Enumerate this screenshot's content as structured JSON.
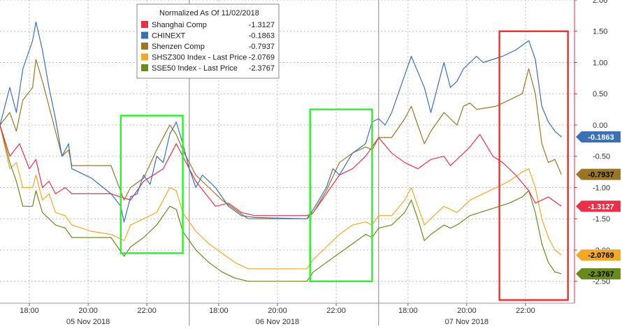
{
  "chart_data": {
    "type": "line",
    "legend": {
      "title": "Normalized As Of 11/02/2018",
      "placement": "top-center"
    },
    "y_axis": {
      "side": "right",
      "ylim": [
        -2.85,
        2.0
      ],
      "ticks": [
        2.0,
        1.5,
        1.0,
        0.5,
        0.0,
        -0.5,
        -1.0,
        -1.5,
        -2.0,
        -2.5
      ],
      "tick_labels": [
        "2.00",
        "1.50",
        "1.00",
        "0.50",
        "0.00",
        "-0.50",
        "-1.00",
        "-1.50",
        "-2.00",
        "-2.50"
      ]
    },
    "x_axis": {
      "tick_labels": [
        "18:00",
        "20:00",
        "22:00",
        "18:00",
        "20:00",
        "22:00",
        "18:00",
        "20:00",
        "22:00"
      ],
      "date_labels": [
        "05 Nov 2018",
        "06 Nov 2018",
        "07 Nov 2018"
      ]
    },
    "grid": true,
    "series": [
      {
        "name": "Shanghai Comp",
        "last": "-1.3127",
        "badge": "-1.3127",
        "color": "#e8304a",
        "values": [
          [
            0,
            0
          ],
          [
            1.5,
            -0.5
          ],
          [
            3,
            -0.3
          ],
          [
            4.5,
            -0.7
          ],
          [
            5.5,
            -0.55
          ],
          [
            6.5,
            -1.0
          ],
          [
            7.5,
            -0.9
          ],
          [
            8.5,
            -1.1
          ],
          [
            10,
            -1.0
          ],
          [
            11,
            -1.1
          ],
          [
            17,
            -1.1
          ],
          [
            20,
            -1.2
          ],
          [
            22,
            -0.9
          ],
          [
            25,
            -0.7
          ],
          [
            27,
            -0.3
          ],
          [
            28.5,
            -0.6
          ],
          [
            30,
            -0.9
          ],
          [
            31.5,
            -1.1
          ],
          [
            33,
            -1.3
          ],
          [
            35,
            -1.25
          ],
          [
            37,
            -1.4
          ],
          [
            39,
            -1.45
          ],
          [
            47,
            -1.45
          ],
          [
            48,
            -1.4
          ],
          [
            50,
            -1.1
          ],
          [
            52,
            -0.8
          ],
          [
            54,
            -0.7
          ],
          [
            56,
            -0.5
          ],
          [
            58,
            -0.2
          ],
          [
            60,
            -0.45
          ],
          [
            62,
            -0.6
          ],
          [
            64,
            -0.7
          ],
          [
            66,
            -0.55
          ],
          [
            68,
            -0.5
          ],
          [
            69,
            -0.65
          ],
          [
            70,
            -0.55
          ],
          [
            72,
            -0.35
          ],
          [
            73.5,
            -0.15
          ],
          [
            75.5,
            -0.5
          ],
          [
            77,
            -0.6
          ],
          [
            79,
            -0.8
          ],
          [
            81,
            -1.05
          ],
          [
            82,
            -1.25
          ],
          [
            84,
            -1.15
          ],
          [
            86,
            -1.3
          ]
        ]
      },
      {
        "name": "CHINEXT",
        "last": "-0.1863",
        "badge": "-0.1863",
        "color": "#3c6fb4",
        "values": [
          [
            0,
            0
          ],
          [
            1.5,
            0.6
          ],
          [
            2.5,
            0.2
          ],
          [
            3.5,
            0.9
          ],
          [
            5,
            1.35
          ],
          [
            5.5,
            1.65
          ],
          [
            6.5,
            1.2
          ],
          [
            7.5,
            0.6
          ],
          [
            8.5,
            0.1
          ],
          [
            9.5,
            -0.5
          ],
          [
            10.5,
            -0.3
          ],
          [
            11,
            -0.7
          ],
          [
            14,
            -0.85
          ],
          [
            17,
            -1.1
          ],
          [
            18.5,
            -1.3
          ],
          [
            19,
            -1.55
          ],
          [
            20,
            -1.15
          ],
          [
            21,
            -1.1
          ],
          [
            22,
            -0.8
          ],
          [
            23,
            -0.95
          ],
          [
            24,
            -0.5
          ],
          [
            25,
            -0.6
          ],
          [
            26,
            -0.15
          ],
          [
            27,
            0.05
          ],
          [
            28,
            -0.3
          ],
          [
            29,
            -0.7
          ],
          [
            30,
            -1.0
          ],
          [
            31,
            -0.8
          ],
          [
            33,
            -1.0
          ],
          [
            35,
            -1.3
          ],
          [
            37,
            -1.45
          ],
          [
            39,
            -1.48
          ],
          [
            47,
            -1.5
          ],
          [
            48,
            -1.35
          ],
          [
            50,
            -1.0
          ],
          [
            51,
            -0.7
          ],
          [
            52,
            -0.8
          ],
          [
            54,
            -0.45
          ],
          [
            56,
            -0.3
          ],
          [
            57,
            0.05
          ],
          [
            58,
            0.1
          ],
          [
            59,
            0.0
          ],
          [
            60,
            0.2
          ],
          [
            61,
            0.5
          ],
          [
            62,
            0.8
          ],
          [
            63,
            1.1
          ],
          [
            65,
            0.6
          ],
          [
            66,
            0.2
          ],
          [
            67,
            0.6
          ],
          [
            68,
            1.0
          ],
          [
            69,
            0.6
          ],
          [
            70,
            0.7
          ],
          [
            71,
            0.9
          ],
          [
            72,
            1.0
          ],
          [
            73,
            1.1
          ],
          [
            74,
            1.0
          ],
          [
            77,
            1.1
          ],
          [
            79,
            1.2
          ],
          [
            81,
            1.35
          ],
          [
            82,
            1.05
          ],
          [
            83,
            0.3
          ],
          [
            84,
            0.05
          ],
          [
            85,
            -0.1
          ],
          [
            86,
            -0.19
          ]
        ]
      },
      {
        "name": "Shenzen Comp",
        "last": "-0.7937",
        "badge": "-0.7937",
        "color": "#9a7526",
        "values": [
          [
            0,
            0
          ],
          [
            1.5,
            0.2
          ],
          [
            2.5,
            -0.1
          ],
          [
            3.5,
            0.4
          ],
          [
            5,
            0.6
          ],
          [
            5.5,
            1.05
          ],
          [
            6.5,
            0.7
          ],
          [
            7.5,
            0.3
          ],
          [
            8.5,
            -0.1
          ],
          [
            9.5,
            -0.5
          ],
          [
            10.5,
            -0.4
          ],
          [
            11,
            -0.65
          ],
          [
            17,
            -0.65
          ],
          [
            19,
            -1.2
          ],
          [
            20,
            -1.0
          ],
          [
            22,
            -0.85
          ],
          [
            24,
            -0.4
          ],
          [
            26,
            0.0
          ],
          [
            27,
            -0.15
          ],
          [
            28,
            -0.4
          ],
          [
            30,
            -0.8
          ],
          [
            32,
            -1.0
          ],
          [
            34,
            -1.2
          ],
          [
            36,
            -1.35
          ],
          [
            38,
            -1.5
          ],
          [
            47,
            -1.5
          ],
          [
            48,
            -1.4
          ],
          [
            50,
            -1.05
          ],
          [
            52,
            -0.6
          ],
          [
            54,
            -0.45
          ],
          [
            56,
            -0.35
          ],
          [
            57,
            -0.4
          ],
          [
            58,
            -0.2
          ],
          [
            60,
            -0.2
          ],
          [
            62,
            0.1
          ],
          [
            63,
            0.3
          ],
          [
            64,
            0.0
          ],
          [
            65,
            -0.3
          ],
          [
            66,
            -0.1
          ],
          [
            68,
            0.2
          ],
          [
            69,
            0.1
          ],
          [
            70,
            0.0
          ],
          [
            71,
            0.3
          ],
          [
            72,
            0.35
          ],
          [
            73,
            0.25
          ],
          [
            76,
            0.3
          ],
          [
            78,
            0.4
          ],
          [
            80,
            0.5
          ],
          [
            81,
            0.9
          ],
          [
            82,
            0.5
          ],
          [
            83,
            -0.3
          ],
          [
            84,
            -0.6
          ],
          [
            85,
            -0.55
          ],
          [
            86,
            -0.79
          ]
        ]
      },
      {
        "name": "SHSZ300 Index - Last Price",
        "last": "-2.0769",
        "badge": "-2.0769",
        "color": "#f3a829",
        "values": [
          [
            0,
            0
          ],
          [
            1.5,
            -0.7
          ],
          [
            2.5,
            -0.6
          ],
          [
            3.5,
            -1.0
          ],
          [
            5,
            -1.0
          ],
          [
            5.5,
            -0.8
          ],
          [
            6.5,
            -1.2
          ],
          [
            7.5,
            -1.1
          ],
          [
            8.5,
            -1.4
          ],
          [
            10,
            -1.45
          ],
          [
            11,
            -1.6
          ],
          [
            14,
            -1.7
          ],
          [
            17,
            -1.75
          ],
          [
            19,
            -1.85
          ],
          [
            20,
            -1.6
          ],
          [
            22,
            -1.5
          ],
          [
            24,
            -1.4
          ],
          [
            26,
            -1.0
          ],
          [
            27,
            -1.05
          ],
          [
            28,
            -1.4
          ],
          [
            30,
            -1.7
          ],
          [
            32,
            -1.9
          ],
          [
            34,
            -2.05
          ],
          [
            36,
            -2.2
          ],
          [
            38,
            -2.3
          ],
          [
            47,
            -2.3
          ],
          [
            48,
            -2.15
          ],
          [
            50,
            -1.95
          ],
          [
            52,
            -1.75
          ],
          [
            54,
            -1.6
          ],
          [
            56,
            -1.55
          ],
          [
            57,
            -1.6
          ],
          [
            58,
            -1.45
          ],
          [
            60,
            -1.45
          ],
          [
            62,
            -1.2
          ],
          [
            63,
            -1.0
          ],
          [
            64,
            -1.3
          ],
          [
            65,
            -1.6
          ],
          [
            66,
            -1.5
          ],
          [
            68,
            -1.3
          ],
          [
            69,
            -1.35
          ],
          [
            70,
            -1.4
          ],
          [
            72,
            -1.2
          ],
          [
            75,
            -1.05
          ],
          [
            78,
            -0.9
          ],
          [
            80,
            -0.75
          ],
          [
            81,
            -0.7
          ],
          [
            82,
            -1.0
          ],
          [
            83,
            -1.5
          ],
          [
            84,
            -1.8
          ],
          [
            85,
            -2.0
          ],
          [
            86,
            -2.08
          ]
        ]
      },
      {
        "name": "SSE50 Index - Last Price",
        "last": "-2.3767",
        "badge": "-2.3767",
        "color": "#6a8a20",
        "values": [
          [
            0,
            0
          ],
          [
            1.5,
            -0.6
          ],
          [
            2.5,
            -0.9
          ],
          [
            3.5,
            -1.3
          ],
          [
            5,
            -1.3
          ],
          [
            5.5,
            -1.05
          ],
          [
            6.5,
            -1.4
          ],
          [
            7.5,
            -1.5
          ],
          [
            8.5,
            -1.6
          ],
          [
            10,
            -1.65
          ],
          [
            11,
            -1.8
          ],
          [
            14,
            -1.8
          ],
          [
            17,
            -1.8
          ],
          [
            19,
            -2.1
          ],
          [
            20,
            -1.95
          ],
          [
            22,
            -1.8
          ],
          [
            24,
            -1.6
          ],
          [
            26,
            -1.3
          ],
          [
            27,
            -1.35
          ],
          [
            28,
            -1.7
          ],
          [
            30,
            -2.0
          ],
          [
            32,
            -2.2
          ],
          [
            34,
            -2.35
          ],
          [
            36,
            -2.45
          ],
          [
            38,
            -2.5
          ],
          [
            47,
            -2.5
          ],
          [
            48,
            -2.35
          ],
          [
            50,
            -2.2
          ],
          [
            52,
            -2.05
          ],
          [
            54,
            -1.9
          ],
          [
            56,
            -1.75
          ],
          [
            57,
            -1.8
          ],
          [
            58,
            -1.65
          ],
          [
            60,
            -1.6
          ],
          [
            62,
            -1.4
          ],
          [
            63,
            -1.2
          ],
          [
            64,
            -1.5
          ],
          [
            65,
            -1.85
          ],
          [
            66,
            -1.75
          ],
          [
            68,
            -1.6
          ],
          [
            69,
            -1.65
          ],
          [
            70,
            -1.6
          ],
          [
            72,
            -1.45
          ],
          [
            75,
            -1.35
          ],
          [
            78,
            -1.25
          ],
          [
            80,
            -1.15
          ],
          [
            81,
            -1.05
          ],
          [
            82,
            -1.4
          ],
          [
            83,
            -1.9
          ],
          [
            84,
            -2.2
          ],
          [
            85,
            -2.35
          ],
          [
            86,
            -2.38
          ]
        ]
      }
    ],
    "highlight_boxes": [
      {
        "color": "#33ee33",
        "x_range": [
          18.5,
          28
        ],
        "y_range": [
          -2.05,
          0.15
        ]
      },
      {
        "color": "#33ee33",
        "x_range": [
          47.5,
          57
        ],
        "y_range": [
          -2.5,
          0.25
        ]
      },
      {
        "color": "#ee3333",
        "x_range": [
          76.5,
          87
        ],
        "y_range": [
          -2.8,
          1.5
        ]
      }
    ]
  }
}
